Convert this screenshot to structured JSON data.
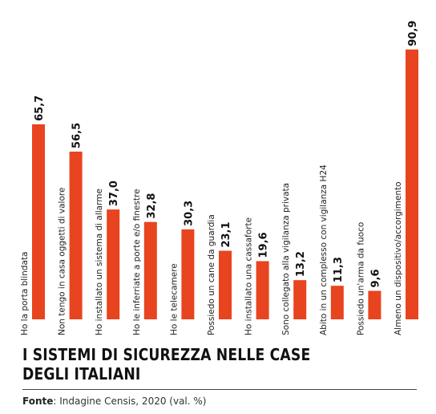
{
  "chart_data": {
    "type": "bar",
    "orientation": "vertical",
    "categories": [
      "Ho la porta blindata",
      "Non tengo in casa oggetti di valore",
      "Ho installato un sistema di allarme",
      "Ho le inferriate a porte e/o finestre",
      "Ho le telecamere",
      "Possiedo un cane da guardia",
      "Ho installato una cassaforte",
      "Sono collegato alla vigilanza privata",
      "Abito in un complesso con vigilanza H24",
      "Possiedo un'arma da fuoco",
      "Almeno un dispositivo/accorgimento"
    ],
    "values": [
      65.7,
      56.5,
      37.0,
      32.8,
      30.3,
      23.1,
      19.6,
      13.2,
      11.3,
      9.6,
      90.9
    ],
    "value_labels": [
      "65,7",
      "56,5",
      "37,0",
      "32,8",
      "30,3",
      "23,1",
      "19,6",
      "13,2",
      "11,3",
      "9,6",
      "90,9"
    ],
    "ylim": [
      0,
      100
    ],
    "bar_color": "#e8441f",
    "grid": false,
    "legend": "none"
  },
  "title_lines": [
    "I sistemi di sicurezza nelle case",
    "degli italiani"
  ],
  "source": {
    "label": "Fonte",
    "text": ": Indagine Censis, 2020 (val. %)"
  }
}
